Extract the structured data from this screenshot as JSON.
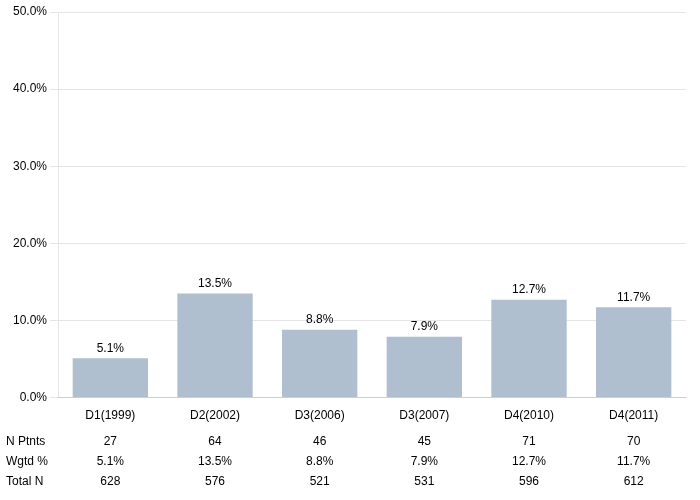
{
  "chart_data": {
    "type": "bar",
    "categories": [
      "D1(1999)",
      "D2(2002)",
      "D3(2006)",
      "D3(2007)",
      "D4(2010)",
      "D4(2011)"
    ],
    "values": [
      5.1,
      13.5,
      8.8,
      7.9,
      12.7,
      11.7
    ],
    "value_labels": [
      "5.1%",
      "13.5%",
      "8.8%",
      "7.9%",
      "12.7%",
      "11.7%"
    ],
    "data_labels": true,
    "color": "#b0bfd0",
    "ylim": [
      0,
      50
    ],
    "yticks": [
      {
        "value": 0,
        "label": "0.0%"
      },
      {
        "value": 10,
        "label": "10.0%"
      },
      {
        "value": 20,
        "label": "20.0%"
      },
      {
        "value": 30,
        "label": "30.0%"
      },
      {
        "value": 40,
        "label": "40.0%"
      },
      {
        "value": 50,
        "label": "50.0%"
      }
    ],
    "grid": true,
    "table": [
      {
        "label": "N Ptnts",
        "values": [
          27,
          64,
          46,
          45,
          71,
          70
        ]
      },
      {
        "label": "Wgtd %",
        "values": [
          5.1,
          13.5,
          8.8,
          7.9,
          12.7,
          11.7
        ],
        "value_labels": [
          "5.1%",
          "13.5%",
          "8.8%",
          "7.9%",
          "12.7%",
          "11.7%"
        ]
      },
      {
        "label": "Total N",
        "values": [
          628,
          576,
          521,
          531,
          596,
          612
        ]
      }
    ]
  }
}
